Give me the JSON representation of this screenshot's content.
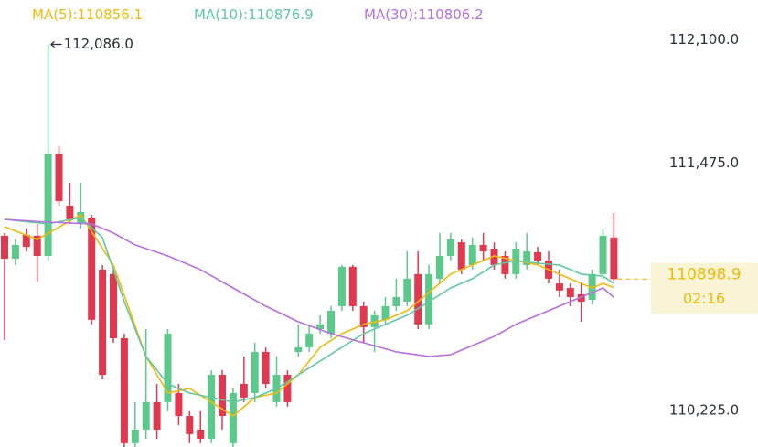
{
  "chart_data": {
    "type": "candlestick",
    "up_color": "#5cc98a",
    "down_color": "#e0384f",
    "ylim": [
      110050,
      112310
    ],
    "yticks": [
      {
        "value": 110225,
        "label": "110,225.0"
      },
      {
        "value": 111475,
        "label": "111,475.0"
      },
      {
        "value": 112100,
        "label": "112,100.0"
      }
    ],
    "grid": false,
    "legend_separator": ":",
    "max_label": "112,086.0",
    "countdown": "02:16",
    "price_color": "#f0b90b",
    "open": [
      111118,
      111002,
      111122,
      111118,
      111016,
      111534,
      111270,
      111178,
      111210,
      110947,
      110924,
      110600,
      110069,
      110138,
      110277,
      110277,
      110323,
      110207,
      110138,
      110092,
      110415,
      110069,
      110369,
      110323,
      110531,
      110277,
      110415,
      110531,
      110554,
      110646,
      110623,
      110762,
      110961,
      110762,
      110656,
      110693,
      110762,
      110785,
      110924,
      110670,
      110901,
      111016,
      111085,
      110970,
      111072,
      111053,
      111016,
      110924,
      110970,
      111035,
      110993,
      110877,
      110854,
      110822,
      110794,
      110924,
      111109
    ],
    "high": [
      111132,
      111099,
      111155,
      111178,
      112086,
      111571,
      111386,
      111386,
      111224,
      110970,
      110947,
      110623,
      110277,
      110646,
      110369,
      110646,
      110369,
      110231,
      110231,
      110438,
      110438,
      110346,
      110508,
      110577,
      110554,
      110508,
      110438,
      110670,
      110670,
      110716,
      110762,
      110970,
      110970,
      110785,
      110739,
      110808,
      110901,
      111039,
      111039,
      110970,
      111132,
      111132,
      111099,
      111109,
      111132,
      111085,
      111039,
      111085,
      111132,
      111062,
      111039,
      110947,
      110877,
      110877,
      110947,
      111155,
      111233
    ],
    "low": [
      110591,
      110970,
      111039,
      110887,
      110993,
      111270,
      111178,
      111155,
      110670,
      110392,
      110577,
      110050,
      110050,
      110092,
      110092,
      110231,
      110161,
      110069,
      110069,
      110069,
      110138,
      110050,
      110277,
      110277,
      110346,
      110254,
      110254,
      110508,
      110531,
      110623,
      110600,
      110739,
      110739,
      110577,
      110531,
      110670,
      110739,
      110762,
      110646,
      110646,
      110877,
      110993,
      110924,
      110947,
      110993,
      110947,
      110901,
      110901,
      110947,
      110970,
      110877,
      110808,
      110762,
      110683,
      110771,
      110901,
      110890
    ],
    "close": [
      111002,
      111072,
      111062,
      111016,
      111534,
      111293,
      111201,
      111238,
      110693,
      110415,
      110600,
      110069,
      110138,
      110277,
      110138,
      110623,
      110207,
      110115,
      110092,
      110415,
      110207,
      110323,
      110300,
      110531,
      110369,
      110415,
      110277,
      110554,
      110623,
      110670,
      110739,
      110961,
      110762,
      110656,
      110716,
      110762,
      110808,
      110901,
      110670,
      110924,
      111016,
      111099,
      110947,
      111072,
      111039,
      110970,
      110924,
      111053,
      111039,
      110993,
      110901,
      110841,
      110808,
      110785,
      110924,
      111118,
      110898.9
    ],
    "series": [
      {
        "name": "MA(5)",
        "color": "#f0b90b",
        "x": [
          0,
          3,
          7,
          10,
          13,
          15,
          17,
          19,
          21,
          23,
          25,
          27,
          29,
          31,
          33,
          35,
          37,
          39,
          41,
          43,
          45,
          47,
          49,
          51,
          53,
          54,
          55,
          56
        ],
        "values": [
          111164,
          111099,
          111224,
          110970,
          110508,
          110323,
          110346,
          110277,
          110207,
          110300,
          110323,
          110415,
          110554,
          110623,
          110670,
          110693,
          110739,
          110831,
          110924,
          110970,
          111016,
          110993,
          110970,
          110924,
          110877,
          110854,
          110877,
          110856.1
        ]
      },
      {
        "name": "MA(10)",
        "color": "#5fc8a0",
        "x": [
          0,
          4,
          7,
          9,
          11,
          13,
          15,
          17,
          19,
          21,
          23,
          25,
          27,
          29,
          31,
          33,
          35,
          37,
          39,
          41,
          43,
          45,
          47,
          49,
          51,
          53,
          55,
          56
        ],
        "values": [
          111201,
          111178,
          111210,
          111109,
          110785,
          110508,
          110369,
          110323,
          110300,
          110277,
          110300,
          110346,
          110415,
          110485,
          110554,
          110623,
          110670,
          110716,
          110785,
          110854,
          110901,
          110970,
          110993,
          110979,
          110970,
          110924,
          110914,
          110876.9
        ]
      },
      {
        "name": "MA(30)",
        "color": "#b66fe0",
        "x": [
          0,
          4,
          8,
          10,
          12,
          15,
          18,
          21,
          24,
          27,
          30,
          33,
          36,
          39,
          41,
          43,
          45,
          47,
          49,
          51,
          53,
          55,
          56
        ],
        "values": [
          111201,
          111187,
          111178,
          111132,
          111072,
          111016,
          110947,
          110854,
          110762,
          110683,
          110623,
          110577,
          110531,
          110508,
          110517,
          110563,
          110609,
          110670,
          110716,
          110762,
          110808,
          110854,
          110806.2
        ]
      }
    ]
  }
}
